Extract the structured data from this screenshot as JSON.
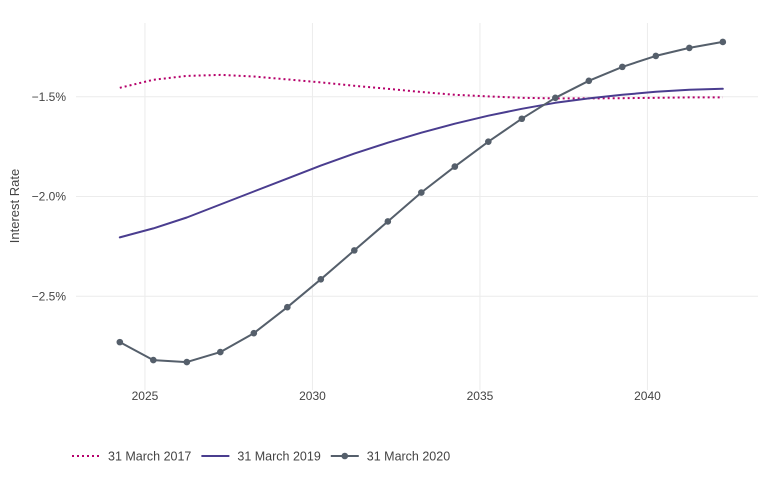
{
  "chart_data": {
    "type": "line",
    "title": "",
    "xlabel": "",
    "ylabel": "Interest Rate",
    "xlim": [
      2023.3,
      2043.3
    ],
    "ylim": [
      -2.97,
      -1.13
    ],
    "x_ticks": [
      2025,
      2030,
      2035,
      2040
    ],
    "x_tick_labels": [
      "2025",
      "2030",
      "2035",
      "2040"
    ],
    "y_ticks": [
      -2.5,
      -2.0,
      -1.5
    ],
    "y_tick_labels": [
      "−2.5%",
      "−2.0%",
      "−1.5%"
    ],
    "grid": true,
    "legend_position": "bottom-left",
    "series": [
      {
        "name": "31 March 2017",
        "color": "#b5006a",
        "dash": "dotted",
        "markers": false,
        "x": [
          2024.25,
          2025.25,
          2026.25,
          2027.25,
          2028.25,
          2029.25,
          2030.25,
          2031.25,
          2032.25,
          2033.25,
          2034.25,
          2035.25,
          2036.25,
          2037.25,
          2038.25,
          2039.25,
          2040.25,
          2041.25,
          2042.25
        ],
        "values": [
          -1.455,
          -1.415,
          -1.395,
          -1.39,
          -1.398,
          -1.413,
          -1.428,
          -1.445,
          -1.46,
          -1.476,
          -1.49,
          -1.498,
          -1.505,
          -1.508,
          -1.508,
          -1.507,
          -1.505,
          -1.503,
          -1.503
        ]
      },
      {
        "name": "31 March 2019",
        "color": "#4a3d8f",
        "dash": "solid",
        "markers": false,
        "x": [
          2024.25,
          2025.25,
          2026.25,
          2027.25,
          2028.25,
          2029.25,
          2030.25,
          2031.25,
          2032.25,
          2033.25,
          2034.25,
          2035.25,
          2036.25,
          2037.25,
          2038.25,
          2039.25,
          2040.25,
          2041.25,
          2042.25
        ],
        "values": [
          -2.205,
          -2.16,
          -2.105,
          -2.04,
          -1.975,
          -1.91,
          -1.845,
          -1.785,
          -1.73,
          -1.68,
          -1.635,
          -1.595,
          -1.56,
          -1.53,
          -1.508,
          -1.49,
          -1.475,
          -1.465,
          -1.46
        ]
      },
      {
        "name": "31 March 2020",
        "color": "#555f6b",
        "dash": "solid",
        "markers": true,
        "x": [
          2024.25,
          2025.25,
          2026.25,
          2027.25,
          2028.25,
          2029.25,
          2030.25,
          2031.25,
          2032.25,
          2033.25,
          2034.25,
          2035.25,
          2036.25,
          2037.25,
          2038.25,
          2039.25,
          2040.25,
          2041.25,
          2042.25
        ],
        "values": [
          -2.73,
          -2.82,
          -2.83,
          -2.78,
          -2.685,
          -2.555,
          -2.415,
          -2.27,
          -2.125,
          -1.98,
          -1.85,
          -1.725,
          -1.61,
          -1.505,
          -1.42,
          -1.35,
          -1.295,
          -1.255,
          -1.225
        ]
      }
    ]
  }
}
